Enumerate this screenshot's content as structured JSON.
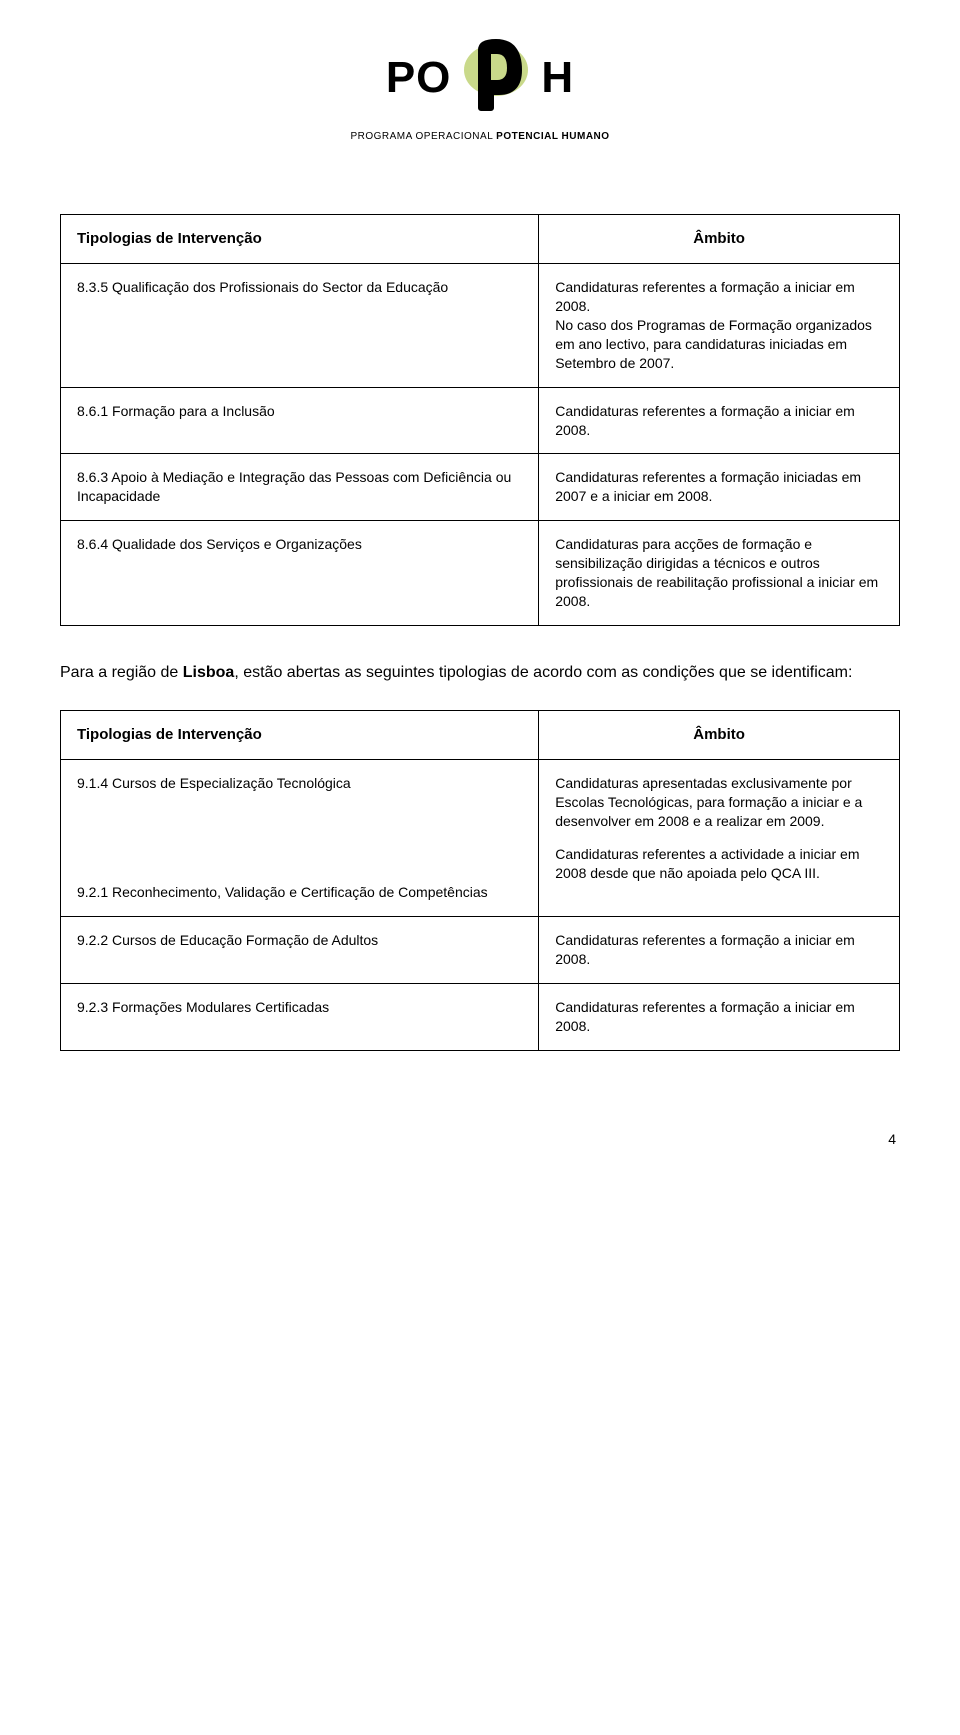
{
  "logo": {
    "left": "PO",
    "right": "H",
    "subtitle_light": "PROGRAMA OPERACIONAL ",
    "subtitle_bold": "POTENCIAL HUMANO",
    "shape_fill": "#c9d98a",
    "shape_stroke": "#000000"
  },
  "table_a": {
    "header": {
      "left": "Tipologias de Intervenção",
      "right": "Âmbito"
    },
    "rows": [
      {
        "left": "8.3.5 Qualificação dos Profissionais do Sector da Educação",
        "right": "Candidaturas referentes a formação a iniciar em 2008.\nNo caso dos Programas de Formação organizados em ano lectivo, para candidaturas iniciadas em Setembro de 2007."
      },
      {
        "left": "8.6.1 Formação para a Inclusão",
        "right": "Candidaturas referentes a formação a iniciar em 2008."
      },
      {
        "left": "8.6.3 Apoio à Mediação e Integração das Pessoas com Deficiência ou Incapacidade",
        "right": "Candidaturas referentes a formação iniciadas em 2007 e a iniciar em 2008."
      },
      {
        "left": "8.6.4 Qualidade dos Serviços e Organizações",
        "right": "Candidaturas para acções de formação e sensibilização dirigidas a técnicos e outros profissionais de reabilitação profissional a iniciar em 2008.",
        "right_justify": true
      }
    ]
  },
  "intro": {
    "pre": "Para a região de ",
    "bold": "Lisboa",
    "post": ", estão abertas as seguintes tipologias de acordo com as condições que se identificam:"
  },
  "table_b": {
    "header": {
      "left": "Tipologias de Intervenção",
      "right": "Âmbito"
    },
    "rows": [
      {
        "left": "9.1.4 Cursos de Especialização Tecnológica",
        "left2": "9.2.1 Reconhecimento, Validação e Certificação de Competências",
        "right": "Candidaturas apresentadas exclusivamente por Escolas Tecnológicas, para formação a iniciar e a desenvolver em 2008 e a realizar em 2009.",
        "right2": "Candidaturas referentes a actividade a iniciar em 2008 desde que não apoiada pelo QCA III.",
        "combined": true
      },
      {
        "left": "9.2.2 Cursos de Educação Formação de Adultos",
        "right": "Candidaturas referentes a formação a iniciar em 2008."
      },
      {
        "left": "9.2.3 Formações Modulares Certificadas",
        "right": "Candidaturas referentes a formação a iniciar em 2008."
      }
    ]
  },
  "page_number": "4"
}
